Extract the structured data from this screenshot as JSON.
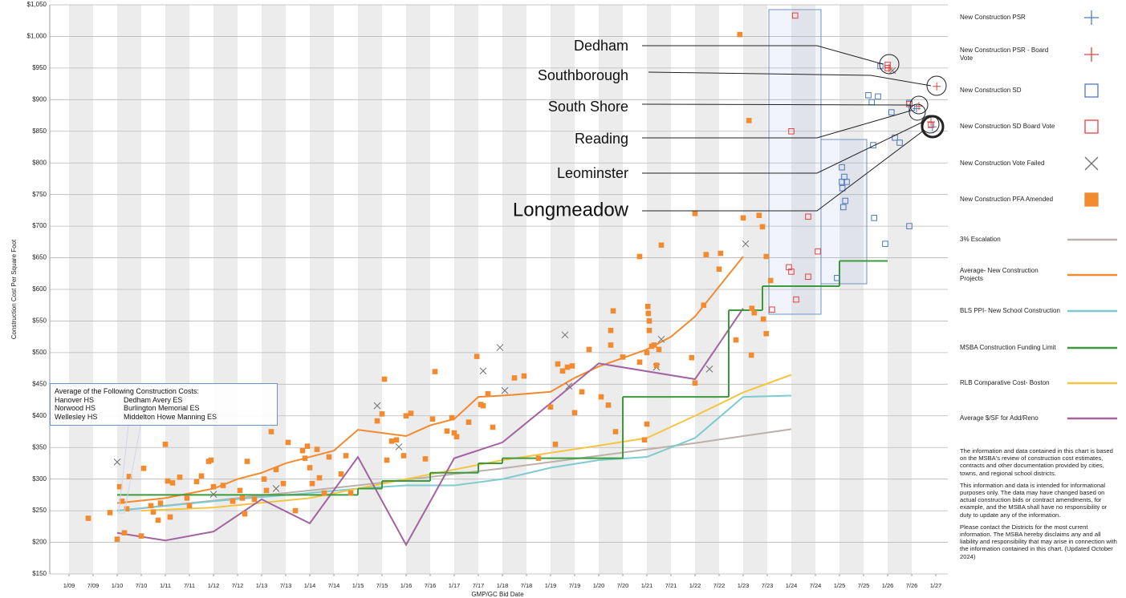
{
  "chart_data": {
    "type": "scatter",
    "x_label": "GMP/GC Bid Date",
    "y_label": "Construction Cost Per Square Foot",
    "xlim": [
      2008.6,
      2027.25
    ],
    "ylim": [
      150,
      1050
    ],
    "xticks": [
      {
        "value": 2009,
        "label": "1/09"
      },
      {
        "value": 2009.5,
        "label": "7/09"
      },
      {
        "value": 2010,
        "label": "1/10"
      },
      {
        "value": 2010.5,
        "label": "7/10"
      },
      {
        "value": 2011,
        "label": "1/11"
      },
      {
        "value": 2011.5,
        "label": "7/11"
      },
      {
        "value": 2012,
        "label": "1/12"
      },
      {
        "value": 2012.5,
        "label": "7/12"
      },
      {
        "value": 2013,
        "label": "1/13"
      },
      {
        "value": 2013.5,
        "label": "7/13"
      },
      {
        "value": 2014,
        "label": "1/14"
      },
      {
        "value": 2014.5,
        "label": "7/14"
      },
      {
        "value": 2015,
        "label": "1/15"
      },
      {
        "value": 2015.5,
        "label": "7/15"
      },
      {
        "value": 2016,
        "label": "1/16"
      },
      {
        "value": 2016.5,
        "label": "7/16"
      },
      {
        "value": 2017,
        "label": "1/17"
      },
      {
        "value": 2017.5,
        "label": "7/17"
      },
      {
        "value": 2018,
        "label": "1/18"
      },
      {
        "value": 2018.5,
        "label": "7/18"
      },
      {
        "value": 2019,
        "label": "1/19"
      },
      {
        "value": 2019.5,
        "label": "7/19"
      },
      {
        "value": 2020,
        "label": "1/20"
      },
      {
        "value": 2020.5,
        "label": "7/20"
      },
      {
        "value": 2021,
        "label": "1/21"
      },
      {
        "value": 2021.5,
        "label": "7/21"
      },
      {
        "value": 2022,
        "label": "1/22"
      },
      {
        "value": 2022.5,
        "label": "7/22"
      },
      {
        "value": 2023,
        "label": "1/23"
      },
      {
        "value": 2023.5,
        "label": "7/23"
      },
      {
        "value": 2024,
        "label": "1/24"
      },
      {
        "value": 2024.5,
        "label": "7/24"
      },
      {
        "value": 2025,
        "label": "1/25"
      },
      {
        "value": 2025.5,
        "label": "7/25"
      },
      {
        "value": 2026,
        "label": "1/26"
      },
      {
        "value": 2026.5,
        "label": "7/26"
      },
      {
        "value": 2027,
        "label": "1/27"
      }
    ],
    "yticks": [
      {
        "value": 150,
        "label": "$150"
      },
      {
        "value": 200,
        "label": "$200"
      },
      {
        "value": 250,
        "label": "$250"
      },
      {
        "value": 300,
        "label": "$300"
      },
      {
        "value": 350,
        "label": "$350"
      },
      {
        "value": 400,
        "label": "$400"
      },
      {
        "value": 450,
        "label": "$450"
      },
      {
        "value": 500,
        "label": "$500"
      },
      {
        "value": 550,
        "label": "$550"
      },
      {
        "value": 600,
        "label": "$600"
      },
      {
        "value": 650,
        "label": "$650"
      },
      {
        "value": 700,
        "label": "$700"
      },
      {
        "value": 750,
        "label": "$750"
      },
      {
        "value": 800,
        "label": "$800"
      },
      {
        "value": 850,
        "label": "$850"
      },
      {
        "value": 900,
        "label": "$900"
      },
      {
        "value": 950,
        "label": "$950"
      },
      {
        "value": 1000,
        "label": "$1,000"
      },
      {
        "value": 1050,
        "label": "$1,050"
      }
    ],
    "grid": true,
    "bands": true,
    "legend": "right",
    "series": [
      {
        "name": "New Construction PSR",
        "type": "scatter",
        "marker": "plus",
        "color": "#4a78c2",
        "x": [
          2026.6,
          2026.93
        ],
        "values": [
          886,
          857
        ]
      },
      {
        "name": "New Construction PSR - Board Vote",
        "type": "scatter",
        "marker": "plus",
        "color": "#e8413c",
        "x": [
          2026.03,
          2027.02,
          2026.65,
          2026.9
        ],
        "values": [
          950,
          921,
          890,
          865
        ]
      },
      {
        "name": "New Construction SD",
        "type": "scatter",
        "marker": "square-open",
        "color": "#4a78c2",
        "x": [
          2025.85,
          2025.6,
          2025.67,
          2025.8,
          2026.08,
          2026.45,
          2026.5,
          2025.7,
          2026.15,
          2026.25,
          2025.05,
          2025.1,
          2025.05,
          2025.15,
          2025.12,
          2025.08,
          2025.72,
          2024.95,
          2025.95,
          2026.45,
          2025.06
        ],
        "values": [
          953,
          907,
          896,
          905,
          880,
          895,
          887,
          828,
          840,
          832,
          793,
          778,
          770,
          770,
          740,
          730,
          713,
          618,
          672,
          700,
          760
        ]
      },
      {
        "name": "New Construction SD Board Vote",
        "type": "scatter",
        "marker": "square-open",
        "color": "#e8413c",
        "x": [
          2024.08,
          2024.0,
          2024.35,
          2024.55,
          2023.95,
          2024.0,
          2024.35,
          2024.1,
          2023.6,
          2026.0,
          2026.0,
          2026.45,
          2026.9
        ],
        "values": [
          1033,
          850,
          715,
          660,
          635,
          628,
          620,
          584,
          568,
          955,
          950,
          893,
          860
        ]
      },
      {
        "name": "New Construction Vote Failed",
        "type": "scatter",
        "marker": "x",
        "color": "#707070",
        "x": [
          2010.0,
          2015.4,
          2015.85,
          2017.6,
          2017.95,
          2018.05,
          2019.3,
          2019.38,
          2021.3,
          2021.2,
          2022.3,
          2023.05,
          2013.3,
          2012.0,
          2026.1
        ],
        "values": [
          327,
          416,
          351,
          471,
          508,
          440,
          528,
          447,
          521,
          477,
          474,
          672,
          285,
          276,
          946
        ]
      },
      {
        "name": "New Construction PFA Amended",
        "type": "scatter",
        "marker": "square",
        "color": "#f28a30",
        "x": [
          2009.4,
          2009.85,
          2010.0,
          2010.05,
          2010.1,
          2010.15,
          2010.2,
          2010.25,
          2010.5,
          2010.55,
          2010.7,
          2010.75,
          2010.85,
          2010.9,
          2011.0,
          2011.05,
          2011.1,
          2011.15,
          2011.3,
          2011.45,
          2011.5,
          2011.65,
          2011.75,
          2011.9,
          2011.95,
          2012.0,
          2012.2,
          2012.4,
          2012.55,
          2012.6,
          2012.65,
          2012.7,
          2012.85,
          2013.05,
          2013.1,
          2013.2,
          2013.3,
          2013.45,
          2013.55,
          2013.7,
          2013.85,
          2013.9,
          2013.95,
          2014.0,
          2014.05,
          2014.15,
          2014.2,
          2014.3,
          2014.4,
          2014.65,
          2014.75,
          2014.85,
          2015.4,
          2015.5,
          2015.55,
          2015.6,
          2015.7,
          2015.8,
          2015.95,
          2016.0,
          2016.1,
          2016.4,
          2016.55,
          2016.6,
          2016.85,
          2016.95,
          2017.0,
          2017.05,
          2017.3,
          2017.47,
          2017.55,
          2017.6,
          2017.7,
          2017.8,
          2018.25,
          2018.45,
          2018.75,
          2019.0,
          2019.1,
          2019.15,
          2019.25,
          2019.35,
          2019.45,
          2019.5,
          2019.65,
          2019.8,
          2020.05,
          2020.2,
          2020.25,
          2020.25,
          2020.3,
          2020.35,
          2020.5,
          2020.85,
          2020.85,
          2020.95,
          2021.0,
          2021.0,
          2021.02,
          2021.03,
          2021.05,
          2021.05,
          2021.1,
          2021.15,
          2021.2,
          2021.25,
          2021.3,
          2021.93,
          2022.0,
          2022.0,
          2022.18,
          2022.23,
          2022.5,
          2022.53,
          2022.85,
          2023.0,
          2022.93,
          2023.12,
          2023.18,
          2023.23,
          2023.17,
          2023.33,
          2023.4,
          2023.42,
          2023.48,
          2023.48,
          2023.57
        ],
        "values": [
          238,
          247,
          205,
          288,
          265,
          215,
          253,
          304,
          210,
          317,
          258,
          248,
          235,
          262,
          355,
          297,
          240,
          294,
          303,
          270,
          258,
          296,
          305,
          328,
          330,
          288,
          290,
          265,
          282,
          270,
          245,
          328,
          268,
          300,
          282,
          375,
          315,
          293,
          358,
          250,
          345,
          333,
          352,
          318,
          293,
          347,
          302,
          278,
          335,
          308,
          337,
          278,
          392,
          403,
          458,
          330,
          360,
          362,
          337,
          400,
          404,
          332,
          395,
          470,
          376,
          397,
          373,
          367,
          390,
          494,
          418,
          416,
          435,
          382,
          460,
          463,
          333,
          414,
          355,
          482,
          471,
          477,
          479,
          405,
          438,
          505,
          430,
          417,
          512,
          535,
          566,
          375,
          493,
          652,
          485,
          362,
          387,
          500,
          573,
          562,
          550,
          535,
          510,
          512,
          480,
          505,
          670,
          492,
          452,
          720,
          575,
          655,
          632,
          657,
          520,
          713,
          1003,
          867,
          570,
          563,
          496,
          717,
          699,
          553,
          652,
          530,
          614
        ]
      },
      {
        "name": "3% Escalation",
        "type": "line",
        "color": "#bcb0aa",
        "x": [
          2010,
          2011,
          2012,
          2013,
          2014,
          2015,
          2016,
          2017,
          2018,
          2019,
          2020,
          2021,
          2022,
          2023,
          2024
        ],
        "values": [
          250,
          258,
          266,
          274,
          282,
          290,
          299,
          308,
          317,
          327,
          337,
          347,
          357,
          368,
          379
        ]
      },
      {
        "name": "Average- New Construction Projects",
        "type": "line",
        "color": "#f28a30",
        "x": [
          2010,
          2011,
          2012,
          2012.5,
          2013,
          2013.5,
          2014,
          2014.5,
          2015,
          2016,
          2016.5,
          2017,
          2017.5,
          2018,
          2019,
          2019.5,
          2020,
          2021,
          2021.5,
          2022,
          2023
        ],
        "values": [
          262,
          270,
          285,
          300,
          310,
          325,
          335,
          345,
          378,
          368,
          385,
          395,
          430,
          432,
          438,
          460,
          478,
          505,
          525,
          557,
          652
        ]
      },
      {
        "name": "BLS PPI- New School Construction",
        "type": "line",
        "color": "#7ccbd0",
        "x": [
          2010,
          2012,
          2014,
          2015,
          2016,
          2017,
          2018,
          2019,
          2020,
          2021,
          2022,
          2023,
          2024
        ],
        "values": [
          250,
          265,
          278,
          285,
          290,
          290,
          300,
          318,
          330,
          335,
          365,
          430,
          432
        ]
      },
      {
        "name": "MSBA Construction Funding Limit",
        "type": "step",
        "color": "#3c9a3c",
        "x": [
          2010,
          2015,
          2015.5,
          2016.5,
          2017.5,
          2018,
          2020.5,
          2022.7,
          2023.4,
          2025,
          2026
        ],
        "values": [
          275,
          285,
          297,
          310,
          325,
          333,
          430,
          567,
          605,
          645,
          645
        ]
      },
      {
        "name": "RLB Comparative Cost- Boston",
        "type": "line",
        "color": "#f5c542",
        "x": [
          2010.5,
          2012,
          2014,
          2016,
          2018,
          2020,
          2021,
          2022,
          2023,
          2024
        ],
        "values": [
          250,
          255,
          270,
          300,
          330,
          353,
          365,
          400,
          437,
          465
        ]
      },
      {
        "name": "Average $/SF for Add/Reno",
        "type": "line",
        "color": "#a362a0",
        "x": [
          2010,
          2011,
          2012,
          2013,
          2014,
          2015,
          2016,
          2017,
          2018,
          2019,
          2020,
          2022,
          2023
        ],
        "values": [
          215,
          203,
          217,
          268,
          230,
          335,
          196,
          333,
          358,
          420,
          483,
          458,
          570
        ]
      }
    ],
    "callouts": [
      "Dedham",
      "Southborough",
      "South Shore",
      "Reading",
      "Leominster",
      "Longmeadow"
    ],
    "note_box": {
      "title": "Average of the Following Construction Costs:",
      "rows": [
        [
          "Hanover HS",
          "Dedham Avery ES"
        ],
        [
          "Norwood HS",
          "Burlington Memorial ES"
        ],
        [
          "Wellesley HS",
          "Middelton Howe Manning ES"
        ]
      ]
    },
    "notes": [
      "The information and data contained in this chart is based on the MSBA's review of construction cost estimates, contracts and other documentation provided by cities, towns, and regional school districts.",
      "This information and data is intended for informational purposes only. The data may have changed based on actual construction bids or contract amendments, for example, and the MSBA shall have no responsibility or duty to update any of the information.",
      "Please contact the Districts for the most current information. The MSBA hereby disclaims any and all liability and responsibility that may arise in connection with the information contained in this chart. (Updated October 2024)"
    ]
  }
}
